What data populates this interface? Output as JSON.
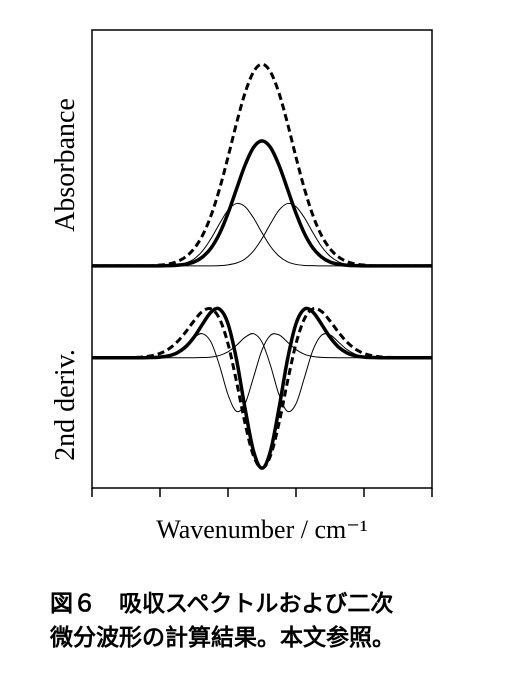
{
  "chart_data": [
    {
      "type": "line",
      "ylabel": "Absorbance",
      "x": [
        0,
        2.5,
        5,
        7.5,
        10,
        12.5,
        15,
        17.5,
        20,
        22.5,
        25,
        27.5,
        30,
        32.5,
        35,
        37.5,
        40,
        42.5,
        45,
        47.5,
        50,
        52.5,
        55,
        57.5,
        60,
        62.5,
        65,
        67.5,
        70,
        72.5,
        75,
        77.5,
        80,
        82.5,
        85,
        87.5,
        90,
        92.5,
        95,
        97.5,
        100
      ],
      "xlim": [
        0,
        100
      ],
      "ylim": [
        -0.1,
        1.17
      ],
      "color": "#000000",
      "series": [
        {
          "style": "dashed",
          "weight": "thick",
          "values": [
            0,
            0,
            0,
            0,
            0,
            0,
            0,
            0,
            0.004,
            0.009,
            0.021,
            0.044,
            0.085,
            0.151,
            0.249,
            0.381,
            0.539,
            0.707,
            0.857,
            0.962,
            1,
            0.962,
            0.857,
            0.707,
            0.539,
            0.381,
            0.249,
            0.151,
            0.085,
            0.044,
            0.021,
            0.009,
            0.004,
            0,
            0,
            0,
            0,
            0,
            0,
            0,
            0
          ]
        },
        {
          "style": "solid",
          "weight": "thick",
          "values": [
            0,
            0,
            0,
            0,
            0,
            0,
            0,
            0,
            0,
            0.001,
            0.003,
            0.008,
            0.019,
            0.044,
            0.088,
            0.16,
            0.261,
            0.381,
            0.499,
            0.587,
            0.62,
            0.587,
            0.499,
            0.381,
            0.261,
            0.16,
            0.088,
            0.044,
            0.019,
            0.008,
            0.003,
            0.001,
            0,
            0,
            0,
            0,
            0,
            0,
            0,
            0,
            0
          ]
        },
        {
          "style": "solid",
          "weight": "thin",
          "values": [
            0,
            0,
            0,
            0,
            0,
            0,
            0,
            0,
            0,
            0.001,
            0.005,
            0.014,
            0.034,
            0.074,
            0.135,
            0.209,
            0.276,
            0.309,
            0.294,
            0.238,
            0.164,
            0.096,
            0.048,
            0.02,
            0.007,
            0.002,
            0.001,
            0,
            0,
            0,
            0,
            0,
            0,
            0,
            0,
            0,
            0,
            0,
            0,
            0,
            0
          ]
        },
        {
          "style": "solid",
          "weight": "thin",
          "values": [
            0,
            0,
            0,
            0,
            0,
            0,
            0,
            0,
            0,
            0,
            0,
            0,
            0,
            0,
            0,
            0.001,
            0.005,
            0.014,
            0.034,
            0.074,
            0.135,
            0.209,
            0.276,
            0.309,
            0.294,
            0.238,
            0.164,
            0.096,
            0.048,
            0.02,
            0.007,
            0.002,
            0.001,
            0,
            0,
            0,
            0,
            0,
            0,
            0,
            0
          ]
        }
      ]
    },
    {
      "type": "line",
      "ylabel": "2nd deriv.",
      "xlabel": "Wavenumber / cm⁻¹",
      "x": [
        0,
        2.5,
        5,
        7.5,
        10,
        12.5,
        15,
        17.5,
        20,
        22.5,
        25,
        27.5,
        30,
        32.5,
        35,
        37.5,
        40,
        42.5,
        45,
        47.5,
        50,
        52.5,
        55,
        57.5,
        60,
        62.5,
        65,
        67.5,
        70,
        72.5,
        75,
        77.5,
        80,
        82.5,
        85,
        87.5,
        90,
        92.5,
        95,
        97.5,
        100
      ],
      "xlim": [
        0,
        100
      ],
      "xticks": [
        0,
        20,
        40,
        60,
        80,
        100
      ],
      "ylim": [
        -1.18,
        0.65
      ],
      "color": "#000000",
      "series": [
        {
          "style": "dashed",
          "weight": "thick",
          "values": [
            0,
            0,
            0,
            0,
            0.001,
            0.003,
            0.007,
            0.018,
            0.039,
            0.078,
            0.142,
            0.231,
            0.334,
            0.42,
            0.443,
            0.354,
            0.127,
            -0.216,
            -0.593,
            -0.888,
            -1,
            -0.888,
            -0.593,
            -0.216,
            0.127,
            0.354,
            0.443,
            0.42,
            0.334,
            0.231,
            0.142,
            0.078,
            0.039,
            0.018,
            0.007,
            0.003,
            0.001,
            0,
            0,
            0,
            0
          ]
        },
        {
          "style": "solid",
          "weight": "thick",
          "values": [
            0,
            0,
            0,
            0,
            0,
            0,
            0,
            0.002,
            0.006,
            0.017,
            0.044,
            0.097,
            0.186,
            0.304,
            0.413,
            0.441,
            0.308,
            -0.016,
            -0.457,
            -0.845,
            -1,
            -0.845,
            -0.457,
            -0.016,
            0.308,
            0.441,
            0.413,
            0.304,
            0.186,
            0.097,
            0.044,
            0.017,
            0.006,
            0.002,
            0,
            0,
            0,
            0,
            0,
            0,
            0
          ]
        },
        {
          "style": "solid",
          "weight": "thin",
          "values": [
            0,
            0,
            0,
            0,
            0,
            0,
            0,
            0.002,
            0.006,
            0.021,
            0.054,
            0.113,
            0.185,
            0.218,
            0.142,
            -0.07,
            -0.334,
            -0.485,
            -0.417,
            -0.178,
            0.071,
            0.204,
            0.207,
            0.142,
            0.074,
            0.031,
            0.011,
            0.003,
            0.001,
            0,
            0,
            0,
            0,
            0,
            0,
            0,
            0,
            0,
            0,
            0,
            0
          ]
        },
        {
          "style": "solid",
          "weight": "thin",
          "values": [
            0,
            0,
            0,
            0,
            0,
            0,
            0,
            0,
            0,
            0,
            0,
            0,
            0,
            0.002,
            0.006,
            0.021,
            0.054,
            0.113,
            0.185,
            0.218,
            0.142,
            -0.07,
            -0.334,
            -0.485,
            -0.417,
            -0.178,
            0.071,
            0.204,
            0.207,
            0.142,
            0.074,
            0.031,
            0.011,
            0.003,
            0.001,
            0,
            0,
            0,
            0,
            0,
            0
          ]
        }
      ]
    }
  ],
  "caption": [
    "図６　吸収スペクトルおよび二次",
    "微分波形の計算結果。本文参照。"
  ]
}
